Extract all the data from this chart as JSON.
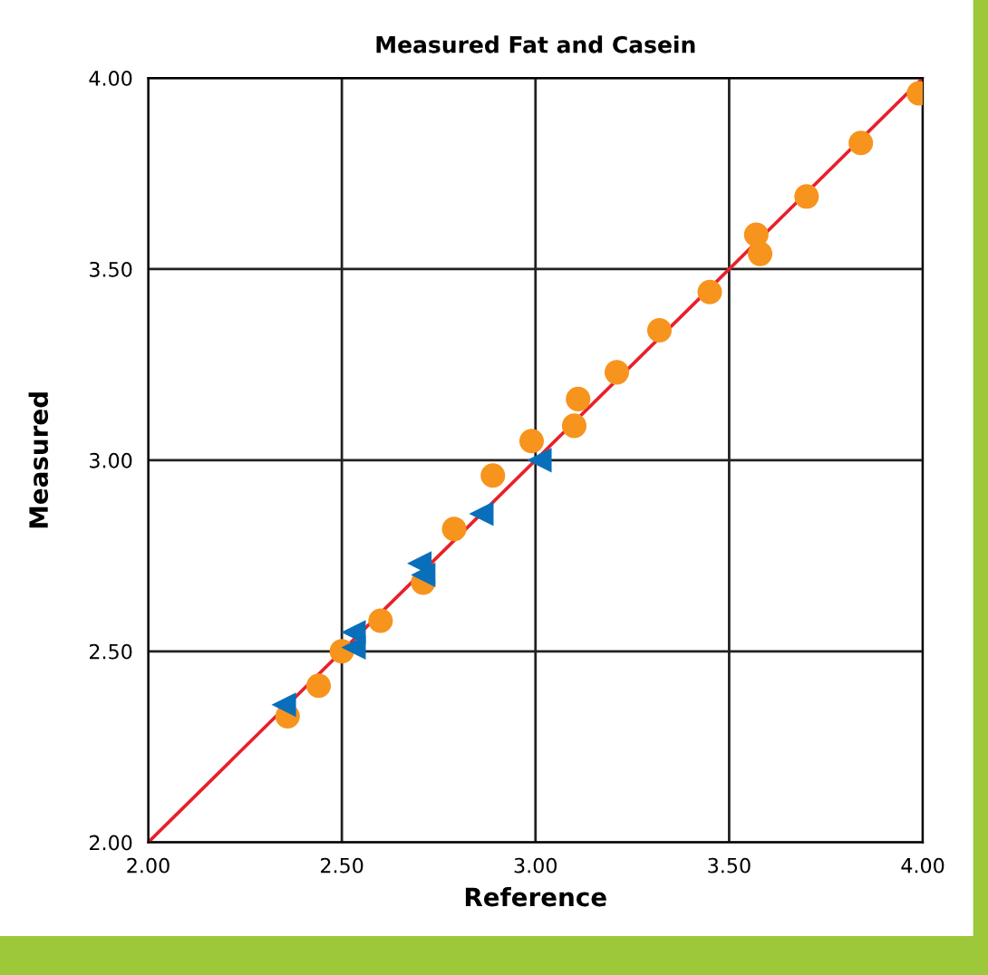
{
  "chart_data": {
    "type": "scatter",
    "title": "Measured Fat and Casein",
    "xlabel": "Reference",
    "ylabel": "Measured",
    "xlim": [
      2.0,
      4.0
    ],
    "ylim": [
      2.0,
      4.0
    ],
    "xticks": [
      {
        "value": 2.0,
        "label": "2.00"
      },
      {
        "value": 2.5,
        "label": "2.50"
      },
      {
        "value": 3.0,
        "label": "3.00"
      },
      {
        "value": 3.5,
        "label": "3.50"
      },
      {
        "value": 4.0,
        "label": "4.00"
      }
    ],
    "yticks": [
      {
        "value": 2.0,
        "label": "2.00"
      },
      {
        "value": 2.5,
        "label": "2.50"
      },
      {
        "value": 3.0,
        "label": "3.00"
      },
      {
        "value": 3.5,
        "label": "3.50"
      },
      {
        "value": 4.0,
        "label": "4.00"
      }
    ],
    "grid": true,
    "legend": false,
    "series": [
      {
        "type": "line",
        "color": "#e8202a",
        "marker": "none",
        "line_style": "solid",
        "x": [
          2.0,
          4.0
        ],
        "values": [
          2.0,
          4.0
        ]
      },
      {
        "color": "#f7941d",
        "marker": "circle",
        "x": [
          2.36,
          2.44,
          2.5,
          2.6,
          2.71,
          2.79,
          2.89,
          2.99,
          3.1,
          3.11,
          3.21,
          3.32,
          3.45,
          3.57,
          3.58,
          3.7,
          3.84,
          3.99
        ],
        "values": [
          2.33,
          2.41,
          2.5,
          2.58,
          2.68,
          2.82,
          2.96,
          3.05,
          3.09,
          3.16,
          3.23,
          3.34,
          3.44,
          3.59,
          3.54,
          3.69,
          3.83,
          3.96
        ]
      },
      {
        "color": "#0a6fba",
        "marker": "triangle",
        "x": [
          2.35,
          2.53,
          2.53,
          2.7,
          2.71,
          2.86,
          3.01
        ],
        "values": [
          2.36,
          2.55,
          2.51,
          2.73,
          2.7,
          2.86,
          3.0
        ]
      }
    ]
  }
}
